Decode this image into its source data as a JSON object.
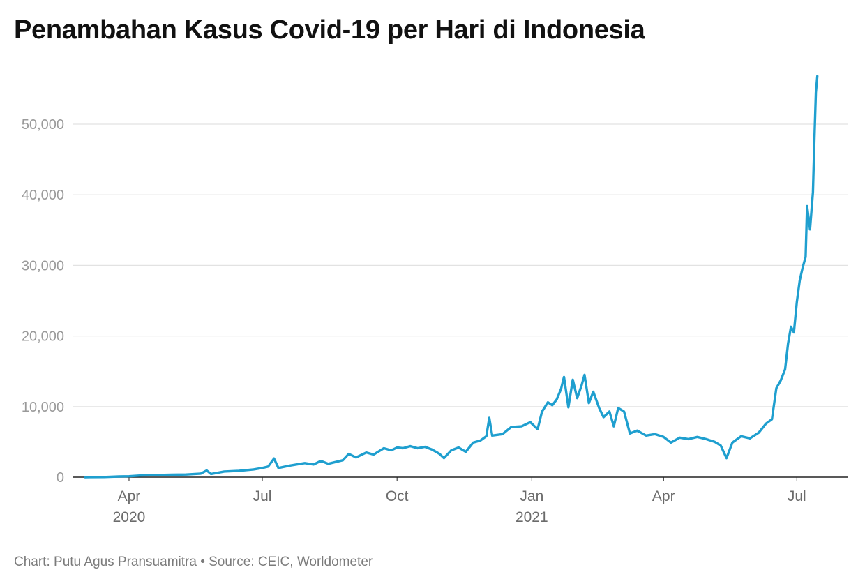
{
  "chart_data": {
    "type": "line",
    "title": "Penambahan Kasus Covid-19 per Hari di Indonesia",
    "xlabel": "",
    "ylabel": "",
    "ylim": [
      0,
      57000
    ],
    "xlim": [
      "2020-03-02",
      "2021-07-28"
    ],
    "yticks": [
      {
        "value": 0,
        "label": "0"
      },
      {
        "value": 10000,
        "label": "10,000"
      },
      {
        "value": 20000,
        "label": "20,000"
      },
      {
        "value": 30000,
        "label": "30,000"
      },
      {
        "value": 40000,
        "label": "40,000"
      },
      {
        "value": 50000,
        "label": "50,000"
      }
    ],
    "xticks": [
      {
        "date": "2020-04-01",
        "label": "Apr",
        "sublabel": "2020"
      },
      {
        "date": "2020-07-01",
        "label": "Jul",
        "sublabel": ""
      },
      {
        "date": "2020-10-01",
        "label": "Oct",
        "sublabel": ""
      },
      {
        "date": "2021-01-01",
        "label": "Jan",
        "sublabel": "2021"
      },
      {
        "date": "2021-04-01",
        "label": "Apr",
        "sublabel": ""
      },
      {
        "date": "2021-07-01",
        "label": "Jul",
        "sublabel": ""
      }
    ],
    "grid": true,
    "legend": "none",
    "line_color": "#1f9fcf",
    "series": [
      {
        "points": [
          [
            "2020-03-02",
            2
          ],
          [
            "2020-03-15",
            20
          ],
          [
            "2020-03-25",
            100
          ],
          [
            "2020-04-01",
            130
          ],
          [
            "2020-04-10",
            250
          ],
          [
            "2020-04-20",
            300
          ],
          [
            "2020-04-30",
            350
          ],
          [
            "2020-05-10",
            380
          ],
          [
            "2020-05-20",
            500
          ],
          [
            "2020-05-24",
            950
          ],
          [
            "2020-05-27",
            450
          ],
          [
            "2020-06-05",
            800
          ],
          [
            "2020-06-15",
            900
          ],
          [
            "2020-06-25",
            1100
          ],
          [
            "2020-07-01",
            1300
          ],
          [
            "2020-07-05",
            1500
          ],
          [
            "2020-07-09",
            2650
          ],
          [
            "2020-07-12",
            1300
          ],
          [
            "2020-07-20",
            1650
          ],
          [
            "2020-07-30",
            2000
          ],
          [
            "2020-08-05",
            1800
          ],
          [
            "2020-08-10",
            2300
          ],
          [
            "2020-08-15",
            1900
          ],
          [
            "2020-08-25",
            2400
          ],
          [
            "2020-08-29",
            3300
          ],
          [
            "2020-09-03",
            2800
          ],
          [
            "2020-09-10",
            3500
          ],
          [
            "2020-09-15",
            3200
          ],
          [
            "2020-09-22",
            4100
          ],
          [
            "2020-09-27",
            3800
          ],
          [
            "2020-10-01",
            4200
          ],
          [
            "2020-10-05",
            4100
          ],
          [
            "2020-10-10",
            4400
          ],
          [
            "2020-10-15",
            4100
          ],
          [
            "2020-10-20",
            4300
          ],
          [
            "2020-10-25",
            3900
          ],
          [
            "2020-10-30",
            3300
          ],
          [
            "2020-11-02",
            2700
          ],
          [
            "2020-11-07",
            3800
          ],
          [
            "2020-11-12",
            4200
          ],
          [
            "2020-11-17",
            3600
          ],
          [
            "2020-11-22",
            4900
          ],
          [
            "2020-11-27",
            5200
          ],
          [
            "2020-12-01",
            5800
          ],
          [
            "2020-12-03",
            8400
          ],
          [
            "2020-12-05",
            5900
          ],
          [
            "2020-12-12",
            6100
          ],
          [
            "2020-12-18",
            7100
          ],
          [
            "2020-12-25",
            7200
          ],
          [
            "2020-12-31",
            7800
          ],
          [
            "2021-01-05",
            6800
          ],
          [
            "2021-01-08",
            9300
          ],
          [
            "2021-01-12",
            10600
          ],
          [
            "2021-01-15",
            10200
          ],
          [
            "2021-01-18",
            11000
          ],
          [
            "2021-01-21",
            12500
          ],
          [
            "2021-01-23",
            14200
          ],
          [
            "2021-01-26",
            9900
          ],
          [
            "2021-01-29",
            13800
          ],
          [
            "2021-02-01",
            11200
          ],
          [
            "2021-02-04",
            13000
          ],
          [
            "2021-02-06",
            14500
          ],
          [
            "2021-02-09",
            10500
          ],
          [
            "2021-02-12",
            12100
          ],
          [
            "2021-02-16",
            9800
          ],
          [
            "2021-02-19",
            8500
          ],
          [
            "2021-02-23",
            9300
          ],
          [
            "2021-02-26",
            7200
          ],
          [
            "2021-03-01",
            9800
          ],
          [
            "2021-03-05",
            9300
          ],
          [
            "2021-03-09",
            6200
          ],
          [
            "2021-03-14",
            6600
          ],
          [
            "2021-03-20",
            5900
          ],
          [
            "2021-03-26",
            6100
          ],
          [
            "2021-04-01",
            5700
          ],
          [
            "2021-04-06",
            4900
          ],
          [
            "2021-04-12",
            5600
          ],
          [
            "2021-04-18",
            5400
          ],
          [
            "2021-04-24",
            5700
          ],
          [
            "2021-04-30",
            5400
          ],
          [
            "2021-05-06",
            5000
          ],
          [
            "2021-05-10",
            4500
          ],
          [
            "2021-05-14",
            2700
          ],
          [
            "2021-05-18",
            4900
          ],
          [
            "2021-05-24",
            5800
          ],
          [
            "2021-05-30",
            5500
          ],
          [
            "2021-06-05",
            6300
          ],
          [
            "2021-06-10",
            7600
          ],
          [
            "2021-06-14",
            8200
          ],
          [
            "2021-06-17",
            12600
          ],
          [
            "2021-06-20",
            13700
          ],
          [
            "2021-06-23",
            15300
          ],
          [
            "2021-06-25",
            18900
          ],
          [
            "2021-06-27",
            21300
          ],
          [
            "2021-06-29",
            20500
          ],
          [
            "2021-07-01",
            24800
          ],
          [
            "2021-07-03",
            27900
          ],
          [
            "2021-07-05",
            29700
          ],
          [
            "2021-07-07",
            31200
          ],
          [
            "2021-07-08",
            38400
          ],
          [
            "2021-07-10",
            35100
          ],
          [
            "2021-07-12",
            40400
          ],
          [
            "2021-07-13",
            47900
          ],
          [
            "2021-07-14",
            54500
          ],
          [
            "2021-07-15",
            56800
          ]
        ]
      }
    ]
  },
  "footer": "Chart: Putu Agus Pransuamitra • Source: CEIC, Worldometer"
}
